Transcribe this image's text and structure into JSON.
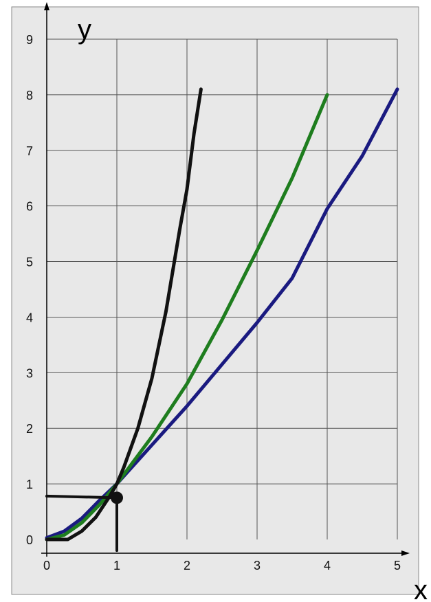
{
  "chart_data": {
    "type": "line",
    "title": "",
    "xlabel": "x",
    "ylabel": "y",
    "xlim": [
      0,
      5
    ],
    "ylim": [
      0,
      9
    ],
    "grid": true,
    "x_ticks": [
      "0",
      "1",
      "2",
      "3",
      "4",
      "5"
    ],
    "y_ticks": [
      "0",
      "1",
      "2",
      "3",
      "4",
      "5",
      "6",
      "7",
      "8",
      "9"
    ],
    "colors": {
      "background": "#e8e8e8",
      "grid": "#555555",
      "axis": "#000000",
      "blue": "#1a1a80",
      "green": "#1e7d1e",
      "black": "#111111"
    },
    "series": [
      {
        "color": "#1a1a80",
        "x": [
          0,
          0.25,
          0.5,
          0.75,
          1,
          1.5,
          2,
          2.5,
          3,
          3.5,
          4,
          4.5,
          5
        ],
        "y": [
          0.03,
          0.15,
          0.38,
          0.7,
          1.0,
          1.7,
          2.4,
          3.15,
          3.9,
          4.7,
          5.95,
          6.9,
          8.1
        ]
      },
      {
        "color": "#1e7d1e",
        "x": [
          0,
          0.25,
          0.5,
          0.75,
          1,
          1.5,
          2,
          2.5,
          3,
          3.5,
          4
        ],
        "y": [
          0.0,
          0.08,
          0.3,
          0.62,
          1.0,
          1.85,
          2.8,
          3.95,
          5.2,
          6.5,
          8.0
        ]
      },
      {
        "color": "#111111",
        "x": [
          0,
          0.3,
          0.5,
          0.7,
          0.9,
          1.0,
          1.1,
          1.3,
          1.5,
          1.7,
          1.9,
          2.0,
          2.1,
          2.2
        ],
        "y": [
          0.0,
          0.0,
          0.15,
          0.4,
          0.78,
          1.0,
          1.3,
          2.0,
          2.9,
          4.1,
          5.6,
          6.3,
          7.3,
          8.1
        ]
      }
    ],
    "marker": {
      "x": 1.0,
      "y": 0.75
    },
    "guide_lines": [
      {
        "from": [
          0,
          0.78
        ],
        "to": [
          1.0,
          0.75
        ]
      },
      {
        "from": [
          1.0,
          0.75
        ],
        "to": [
          1.0,
          -0.2
        ]
      }
    ]
  }
}
